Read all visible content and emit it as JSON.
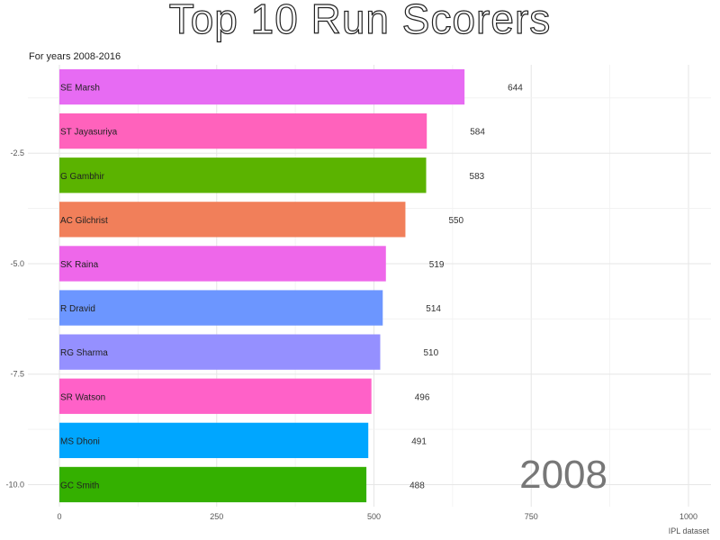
{
  "chart_data": {
    "type": "bar",
    "orientation": "horizontal",
    "title": "Top 10 Run Scorers",
    "subtitle": "For years 2008-2016",
    "caption": "IPL dataset",
    "year_label": "2008",
    "xlim": [
      0,
      1000
    ],
    "ylim": [
      -10.5,
      -0.5
    ],
    "x_ticks": [
      "0",
      "250",
      "500",
      "750",
      "1000"
    ],
    "y_ticks": [
      {
        "value": -2.5,
        "label": "-2.5"
      },
      {
        "value": -5.0,
        "label": "-5.0"
      },
      {
        "value": -7.5,
        "label": "-7.5"
      },
      {
        "value": -10.0,
        "label": "-10.0"
      }
    ],
    "grid": true,
    "legend": "none",
    "bars": [
      {
        "name": "SE Marsh",
        "value": 644,
        "color": "#E76BF3"
      },
      {
        "name": "ST Jayasuriya",
        "value": 584,
        "color": "#FF62BC"
      },
      {
        "name": "G Gambhir",
        "value": 583,
        "color": "#5BB300"
      },
      {
        "name": "AC Gilchrist",
        "value": 550,
        "color": "#F17F5A"
      },
      {
        "name": "SK Raina",
        "value": 519,
        "color": "#EE67EA"
      },
      {
        "name": "R Dravid",
        "value": 514,
        "color": "#6C96FF"
      },
      {
        "name": "RG Sharma",
        "value": 510,
        "color": "#9590FF"
      },
      {
        "name": "SR Watson",
        "value": 496,
        "color": "#FF61C8"
      },
      {
        "name": "MS Dhoni",
        "value": 491,
        "color": "#00A6FF"
      },
      {
        "name": "GC Smith",
        "value": 488,
        "color": "#34B000"
      }
    ]
  }
}
